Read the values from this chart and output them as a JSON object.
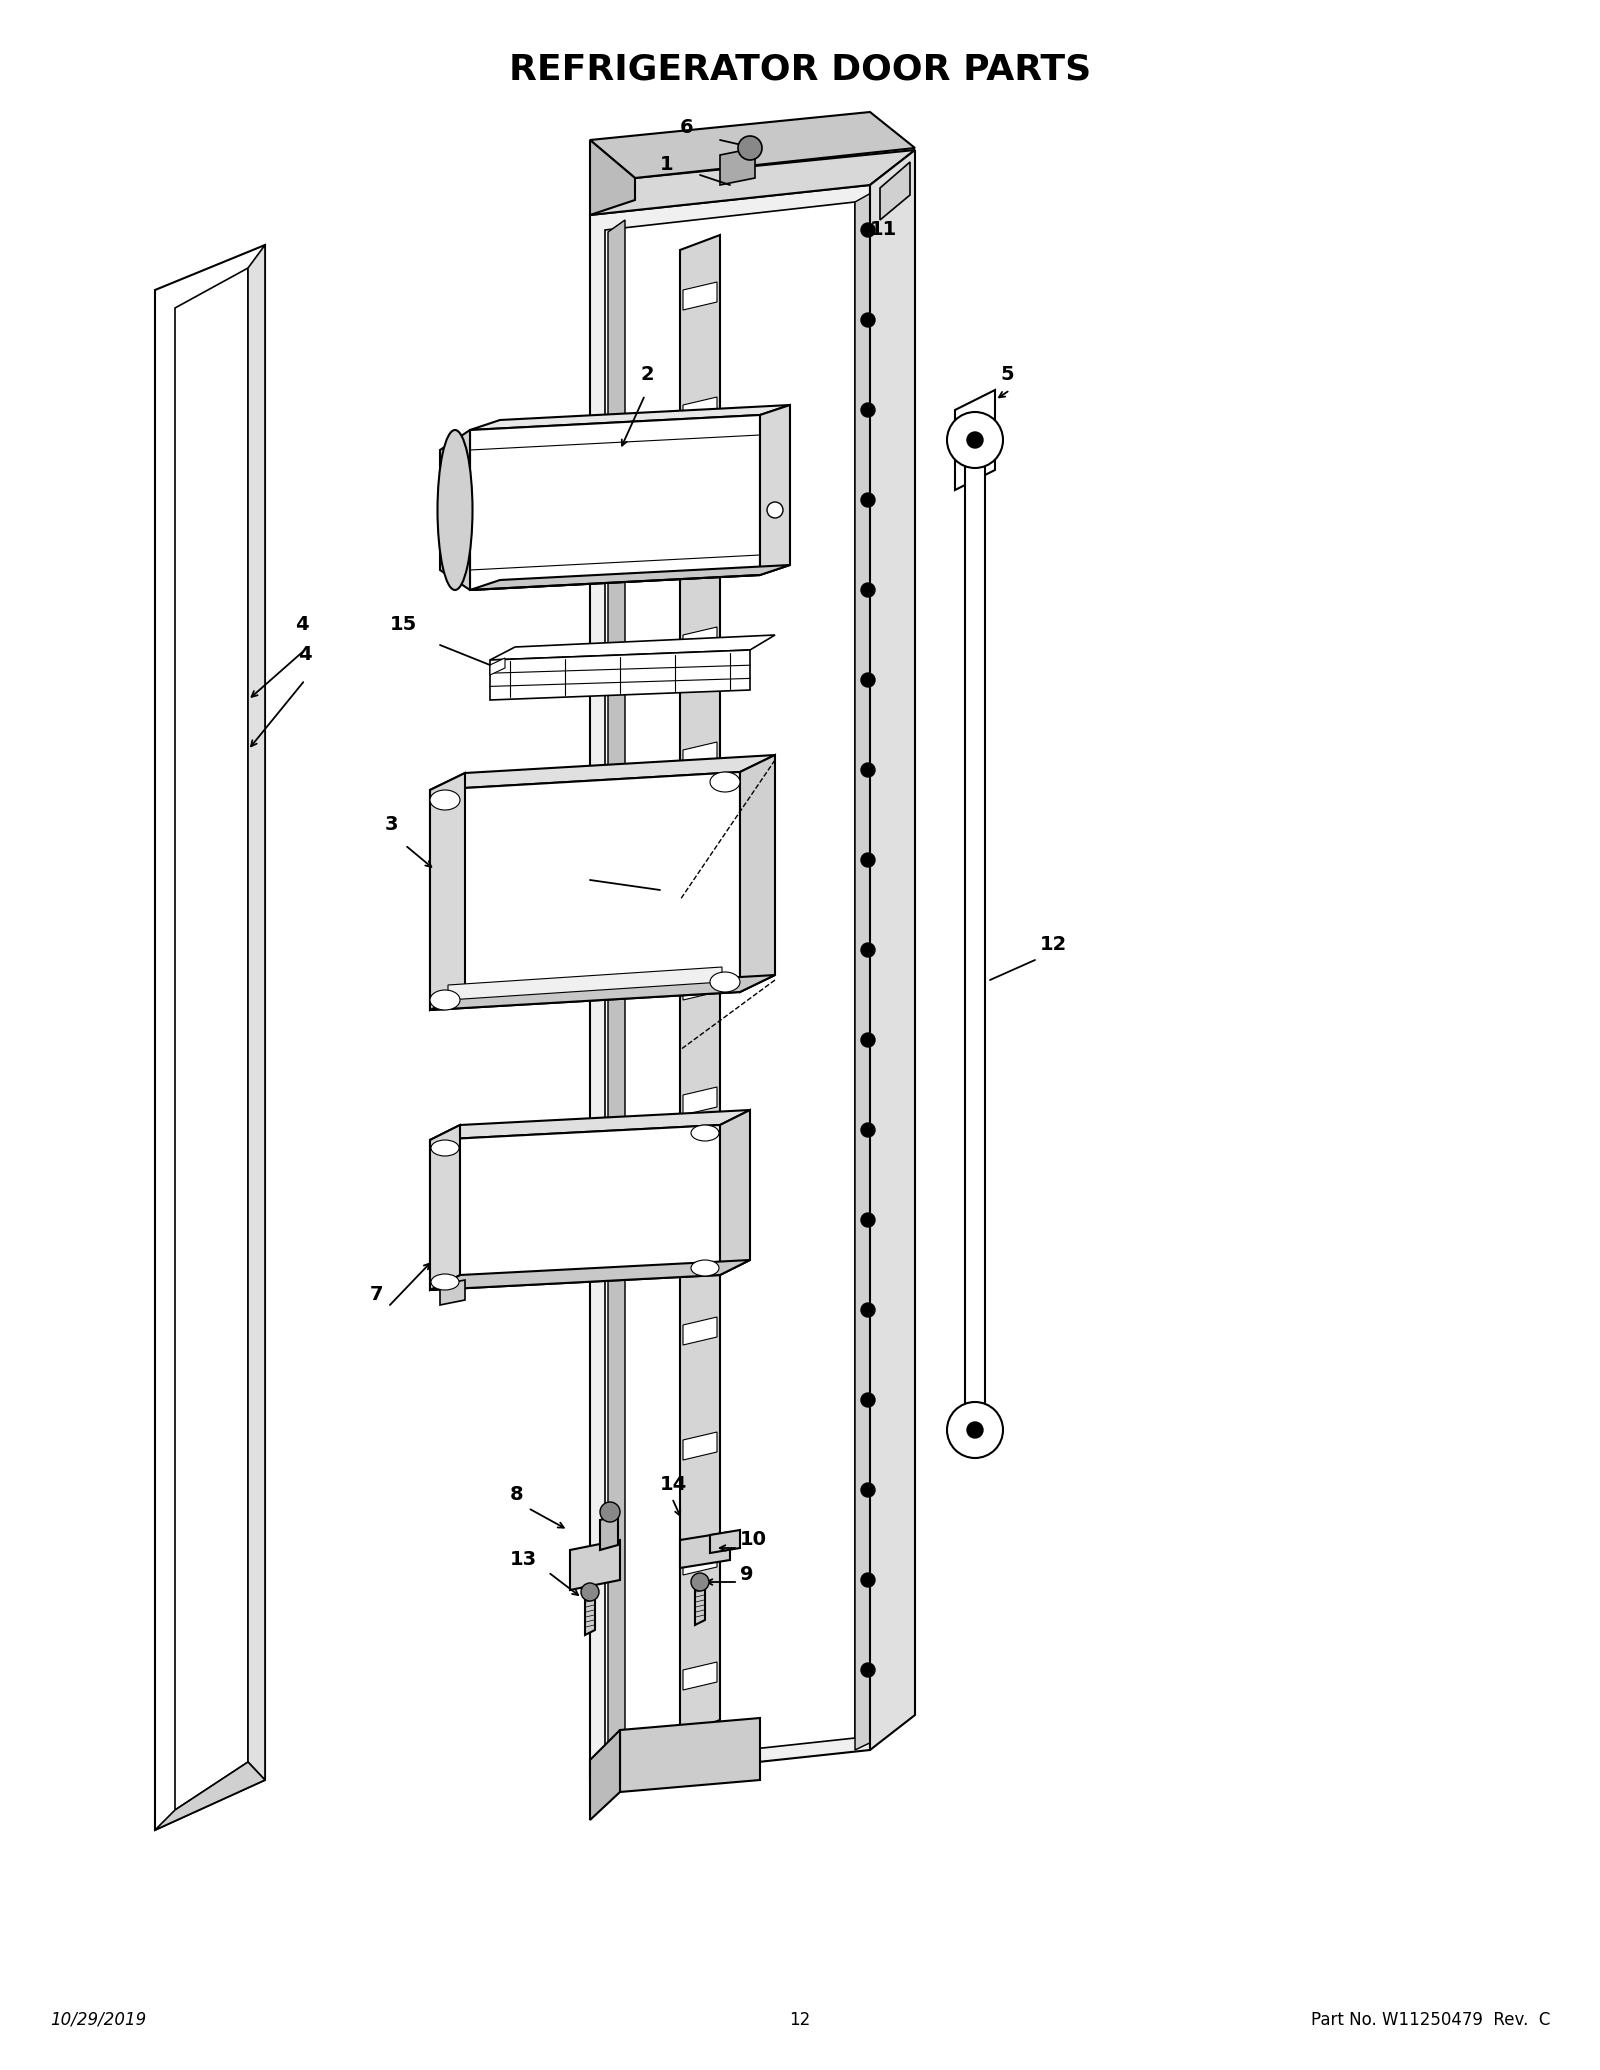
{
  "title": "REFRIGERATOR DOOR PARTS",
  "title_fontsize": 26,
  "title_fontweight": "bold",
  "footer_left": "10/29/2019",
  "footer_center": "12",
  "footer_right": "Part No. W11250479  Rev.  C",
  "bg": "#ffffff",
  "lc": "#000000",
  "lw": 1.5,
  "label_fs": 14
}
